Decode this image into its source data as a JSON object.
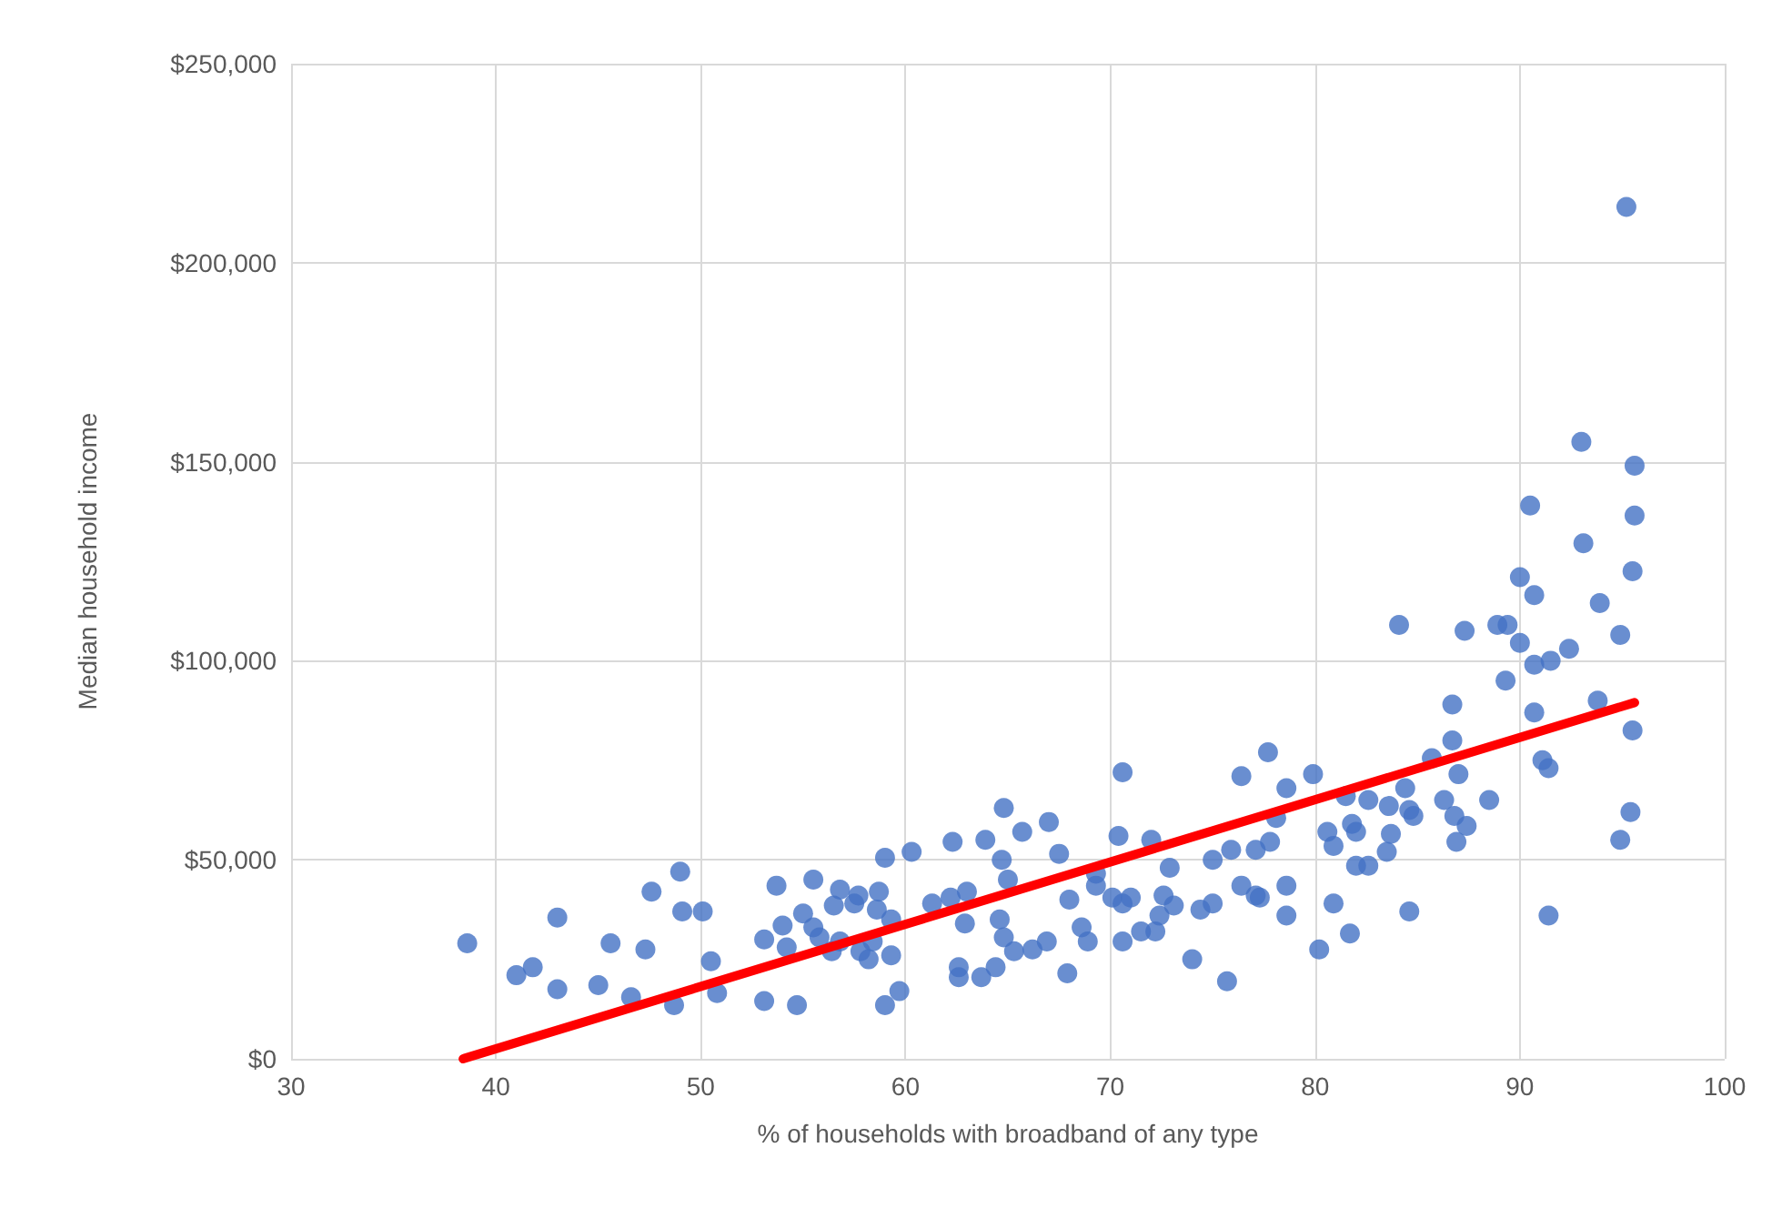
{
  "chart_data": {
    "type": "scatter",
    "xlabel": "% of households with broadband of any type",
    "ylabel": "Median household income",
    "xlim": [
      30,
      100
    ],
    "xticks": [
      30,
      40,
      50,
      60,
      70,
      80,
      90,
      100
    ],
    "ylim": [
      0,
      250000
    ],
    "yticks": [
      {
        "value": 0,
        "label": "$0"
      },
      {
        "value": 50000,
        "label": "$50,000"
      },
      {
        "value": 100000,
        "label": "$100,000"
      },
      {
        "value": 150000,
        "label": "$150,000"
      },
      {
        "value": 200000,
        "label": "$200,000"
      },
      {
        "value": 250000,
        "label": "$250,000"
      }
    ],
    "grid": true,
    "series": [
      {
        "color": "#4472c4",
        "marker": "circle",
        "x": [
          38.6,
          41.0,
          41.8,
          43.0,
          43.0,
          45.0,
          45.6,
          46.6,
          47.3,
          47.6,
          48.7,
          49.0,
          49.1,
          50.1,
          50.5,
          50.8,
          53.1,
          53.1,
          53.7,
          54.0,
          54.2,
          54.7,
          55.0,
          55.5,
          55.5,
          55.8,
          56.4,
          56.5,
          56.8,
          56.8,
          57.5,
          57.7,
          57.8,
          58.2,
          59.0,
          60.3,
          59.0,
          59.7,
          58.7,
          58.6,
          59.3,
          58.4,
          59.3,
          62.3,
          63.9,
          64.8,
          65.7,
          67.0,
          67.5,
          64.7,
          65.0,
          61.3,
          62.2,
          63.0,
          62.9,
          64.6,
          64.8,
          62.6,
          62.6,
          63.7,
          64.4,
          65.3,
          66.2,
          66.9,
          67.9,
          68.0,
          68.6,
          68.9,
          69.3,
          69.3,
          70.6,
          70.4,
          70.1,
          70.6,
          71.0,
          70.6,
          71.5,
          72.2,
          72.0,
          72.9,
          72.6,
          73.1,
          72.4,
          74.0,
          74.4,
          75.0,
          75.0,
          75.7,
          75.9,
          76.4,
          76.4,
          77.1,
          77.1,
          77.8,
          77.7,
          78.6,
          78.6,
          78.6,
          79.9,
          78.1,
          80.6,
          80.9,
          81.5,
          82.6,
          81.8,
          82.0,
          83.6,
          83.7,
          83.5,
          82.0,
          82.6,
          84.4,
          84.6,
          84.8,
          85.7,
          86.7,
          87.0,
          86.3,
          86.8,
          87.4,
          86.9,
          88.5,
          91.1,
          91.4,
          95.4,
          94.9,
          77.3,
          80.9,
          81.7,
          80.2,
          84.6,
          91.4,
          86.7,
          90.7,
          93.8,
          95.5,
          93.0,
          95.6,
          90.5,
          95.6,
          93.1,
          95.5,
          90.0,
          90.7,
          93.9,
          84.1,
          87.3,
          88.9,
          89.4,
          90.0,
          92.4,
          94.9,
          90.7,
          91.5,
          89.3,
          95.2
        ],
        "values": [
          29000,
          21000,
          23000,
          35500,
          17500,
          18500,
          29000,
          15500,
          27500,
          42000,
          13500,
          47000,
          37000,
          37000,
          24500,
          16500,
          30000,
          14500,
          43500,
          33500,
          28000,
          13500,
          36500,
          45000,
          33000,
          30500,
          27000,
          38500,
          42500,
          29500,
          39000,
          41000,
          27000,
          25000,
          50500,
          52000,
          13500,
          17000,
          42000,
          37500,
          35000,
          29500,
          26000,
          54500,
          55000,
          63000,
          57000,
          59500,
          51500,
          50000,
          45000,
          39000,
          40500,
          42000,
          34000,
          35000,
          30500,
          23000,
          20500,
          20500,
          23000,
          27000,
          27500,
          29500,
          21500,
          40000,
          33000,
          29500,
          43500,
          46500,
          72000,
          56000,
          40500,
          39000,
          40500,
          29500,
          32000,
          32000,
          55000,
          48000,
          41000,
          38500,
          36000,
          25000,
          37500,
          39000,
          50000,
          19500,
          52500,
          71000,
          43500,
          52500,
          41000,
          54500,
          77000,
          68000,
          43500,
          36000,
          71500,
          60500,
          57000,
          53500,
          66000,
          65000,
          59000,
          57000,
          63500,
          56500,
          52000,
          48500,
          48500,
          68000,
          62500,
          61000,
          75500,
          80000,
          71500,
          65000,
          61000,
          58500,
          54500,
          65000,
          75000,
          73000,
          62000,
          55000,
          40500,
          39000,
          31500,
          27500,
          37000,
          36000,
          89000,
          87000,
          90000,
          82500,
          155000,
          149000,
          139000,
          136500,
          129500,
          122500,
          121000,
          116500,
          114500,
          109000,
          107500,
          109000,
          109000,
          104500,
          103000,
          106500,
          99000,
          100000,
          95000,
          214000
        ]
      },
      {
        "type": "line",
        "marker": "none",
        "color": "#ff0000",
        "x": [
          38.4,
          95.6
        ],
        "values": [
          0,
          89500
        ]
      }
    ]
  }
}
